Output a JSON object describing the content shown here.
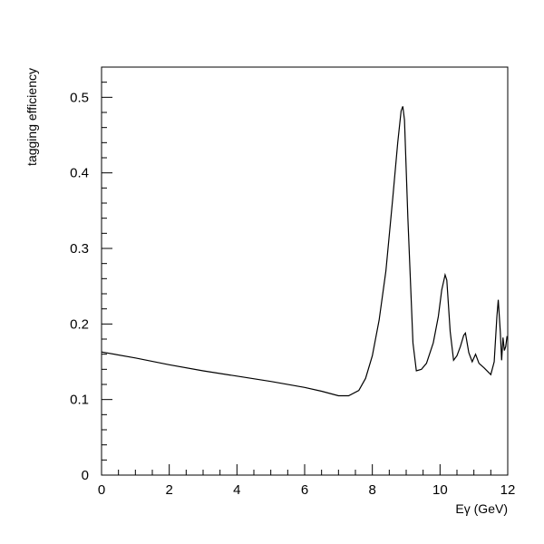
{
  "chart_data": {
    "type": "line",
    "title": "",
    "xlabel": "Eγ (GeV)",
    "ylabel": "tagging efficiency",
    "xlim": [
      0,
      12
    ],
    "ylim": [
      0,
      0.54
    ],
    "x_ticks": [
      0,
      2,
      4,
      6,
      8,
      10,
      12
    ],
    "x_tick_labels": [
      "0",
      "2",
      "4",
      "6",
      "8",
      "10",
      "12"
    ],
    "y_ticks": [
      0,
      0.1,
      0.2,
      0.3,
      0.4,
      0.5
    ],
    "y_tick_labels": [
      "0",
      "0.1",
      "0.2",
      "0.3",
      "0.4",
      "0.5"
    ],
    "grid": false,
    "series": [
      {
        "color": "#000000",
        "x": [
          0,
          1,
          2,
          3,
          4,
          5,
          6,
          6.5,
          7.0,
          7.3,
          7.6,
          7.8,
          8.0,
          8.2,
          8.4,
          8.6,
          8.75,
          8.85,
          8.9,
          8.95,
          9.05,
          9.2,
          9.3,
          9.45,
          9.6,
          9.8,
          9.95,
          10.05,
          10.15,
          10.2,
          10.3,
          10.4,
          10.5,
          10.6,
          10.7,
          10.75,
          10.85,
          10.95,
          11.05,
          11.15,
          11.3,
          11.5,
          11.6,
          11.68,
          11.72,
          11.78,
          11.82,
          11.86,
          11.9,
          11.94,
          11.98
        ],
        "y": [
          0.163,
          0.155,
          0.146,
          0.138,
          0.131,
          0.124,
          0.116,
          0.111,
          0.105,
          0.105,
          0.112,
          0.128,
          0.158,
          0.205,
          0.27,
          0.365,
          0.44,
          0.482,
          0.488,
          0.47,
          0.34,
          0.175,
          0.138,
          0.14,
          0.148,
          0.175,
          0.21,
          0.245,
          0.265,
          0.258,
          0.19,
          0.152,
          0.158,
          0.17,
          0.185,
          0.188,
          0.162,
          0.15,
          0.16,
          0.148,
          0.142,
          0.133,
          0.15,
          0.21,
          0.232,
          0.19,
          0.152,
          0.182,
          0.165,
          0.17,
          0.184
        ]
      }
    ]
  }
}
